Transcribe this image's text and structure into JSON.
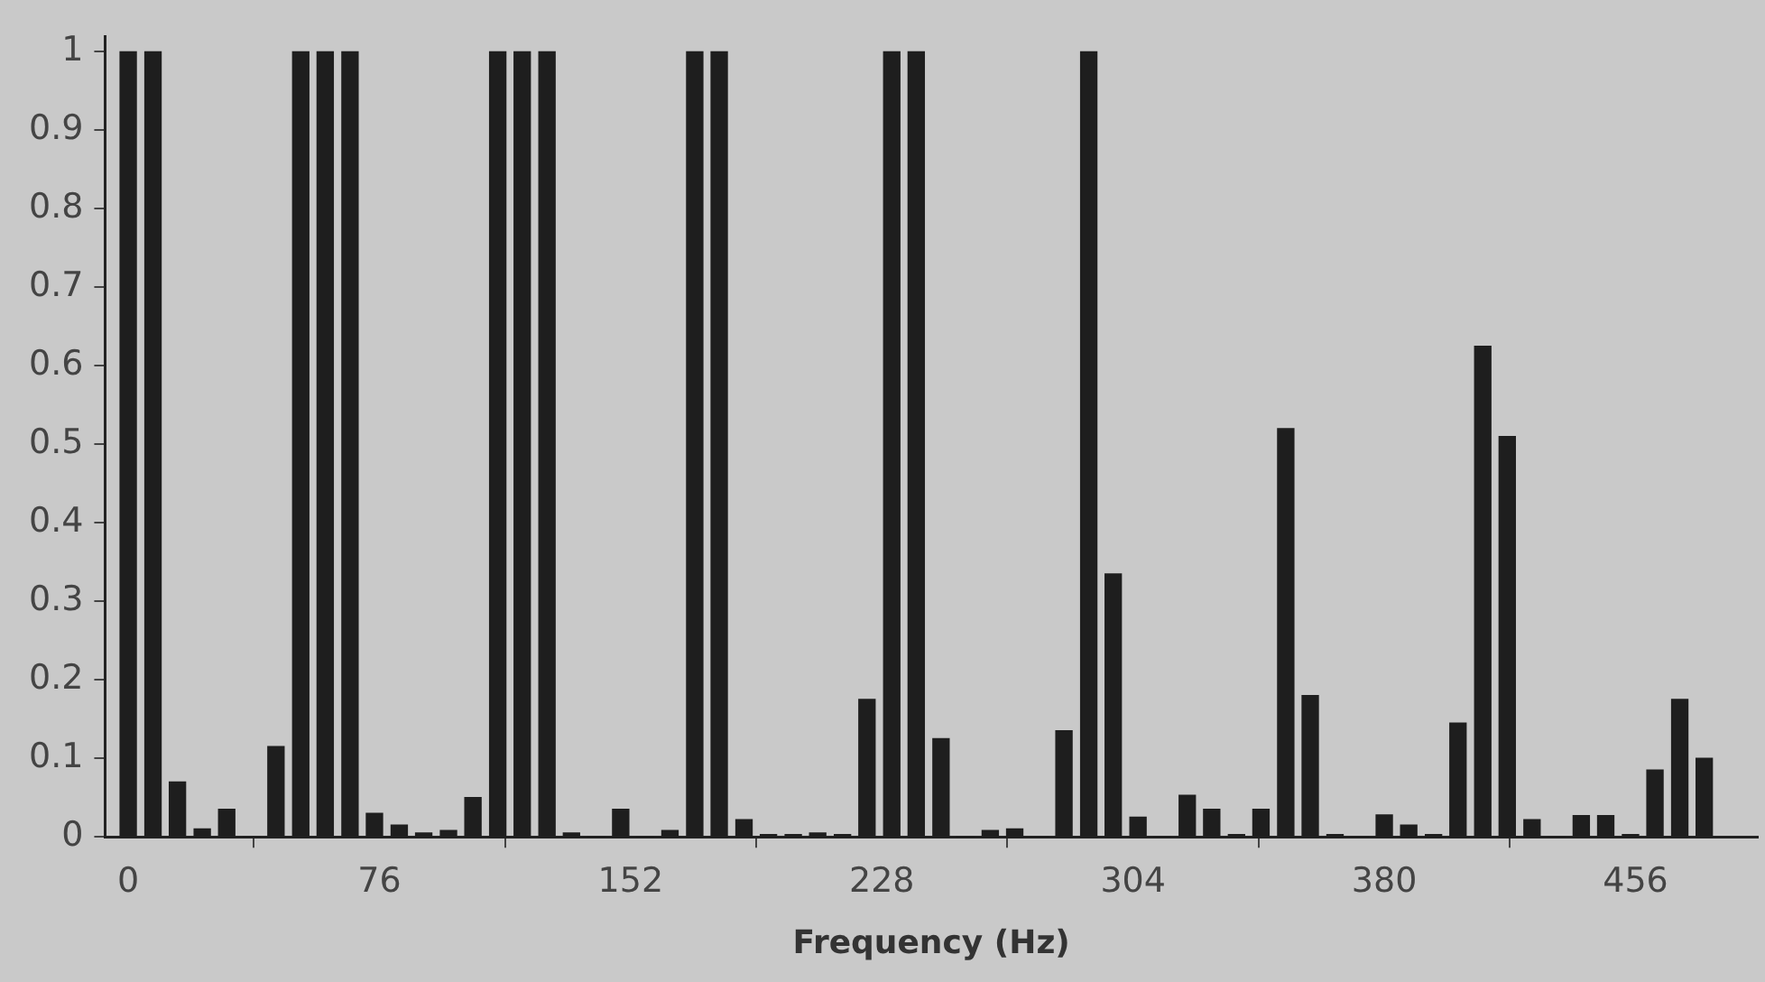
{
  "chart_data": {
    "type": "bar",
    "xlabel": "Frequency (Hz)",
    "x": [
      0,
      7.5,
      14.9,
      22.4,
      29.8,
      37.3,
      44.7,
      52.2,
      59.6,
      67.1,
      74.5,
      82,
      89.4,
      96.9,
      104.3,
      111.8,
      119.2,
      126.7,
      134.1,
      141.6,
      149,
      156.5,
      163.9,
      171.4,
      178.8,
      186.3,
      193.7,
      201.2,
      208.6,
      216.1,
      223.5,
      231,
      238.4,
      245.9,
      253.3,
      260.8,
      268.2,
      275.7,
      283.1,
      290.6,
      298,
      305.5,
      312.9,
      320.4,
      327.8,
      335.3,
      342.7,
      350.2,
      357.6,
      365.1,
      372.5,
      380,
      387.4,
      394.9,
      402.3,
      409.8,
      417.2,
      424.7,
      432.1,
      439.6,
      447,
      454.5,
      461.9,
      469.4,
      476.8
    ],
    "values": [
      1,
      1,
      0.07,
      0.01,
      0.035,
      0,
      0.115,
      1,
      1,
      1,
      0.03,
      0.015,
      0.005,
      0.008,
      0.05,
      1,
      1,
      1,
      0.005,
      0,
      0.035,
      0,
      0.008,
      1,
      1,
      0.022,
      0.003,
      0.003,
      0.005,
      0.003,
      0.175,
      1,
      1,
      0.125,
      0,
      0.008,
      0.01,
      0,
      0.135,
      1,
      0.335,
      0.025,
      0,
      0.053,
      0.035,
      0.003,
      0.035,
      0.52,
      0.18,
      0.003,
      0,
      0.028,
      0.015,
      0.003,
      0.145,
      0.625,
      0.51,
      0.022,
      0,
      0.027,
      0.027,
      0.003,
      0.085,
      0.175,
      0.1
    ],
    "color": "#1e1e1e",
    "xlim": [
      -7,
      493
    ],
    "xticks": [
      0,
      76,
      152,
      228,
      304,
      380,
      456
    ],
    "ylim": [
      0,
      1.02
    ],
    "yticks": [
      0,
      0.1,
      0.2,
      0.3,
      0.4,
      0.5,
      0.6,
      0.7,
      0.8,
      0.9,
      1
    ],
    "grid": false,
    "legend": false
  }
}
